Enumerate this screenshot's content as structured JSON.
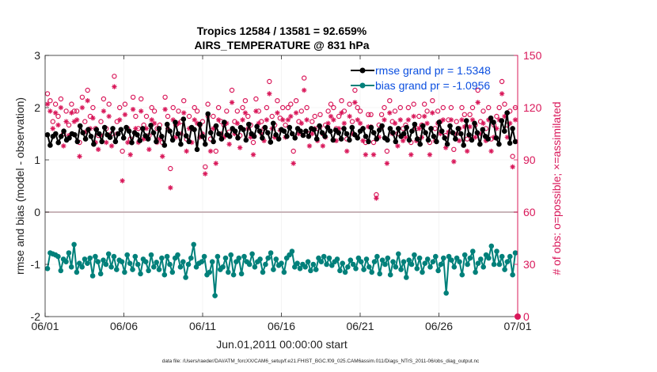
{
  "chart_data": {
    "type": "line",
    "title_line1": "Tropics 12584 / 13581 = 92.659%",
    "title_line2": "AIRS_TEMPERATURE @ 831 hPa",
    "xlabel": "Jun.01,2011 00:00:00 start",
    "ylabel_left": "rmse and bias (model - observation)",
    "ylabel_right": "# of obs: o=possible; ×=assimilated",
    "xlim": [
      0,
      30
    ],
    "ylim_left": [
      -2,
      3
    ],
    "ylim_right": [
      0,
      150
    ],
    "x_ticks": [
      0,
      5,
      10,
      15,
      20,
      25,
      30
    ],
    "x_tick_labels": [
      "06/01",
      "06/06",
      "06/11",
      "06/16",
      "06/21",
      "06/26",
      "07/01"
    ],
    "y_ticks_left": [
      -2,
      -1,
      0,
      1,
      2,
      3
    ],
    "y_ticks_right": [
      0,
      30,
      60,
      90,
      120,
      150
    ],
    "footer": "data file: /Users/raeder/DAI/ATM_forcXX/CAM6_setup/f.e21.FHIST_BGC.f09_025.CAM6assim.011/Diags_NTrS_2011-06/obs_diag_output.nc",
    "colors": {
      "rmse": "#000000",
      "bias": "#00807a",
      "obs": "#d9185a",
      "zero_line": "#c8b4b9",
      "label_blue": "#0b4fe0"
    },
    "series": [
      {
        "name": "rmse",
        "legend": "rmse grand pr = 1.5348",
        "values": [
          1.48,
          1.28,
          1.45,
          1.5,
          1.33,
          1.45,
          1.55,
          1.38,
          1.42,
          1.5,
          1.48,
          1.35,
          1.65,
          1.52,
          1.4,
          1.58,
          1.45,
          1.3,
          1.58,
          1.5,
          1.35,
          1.62,
          1.48,
          1.43,
          1.6,
          1.35,
          1.5,
          1.58,
          1.42,
          1.62,
          1.55,
          1.33,
          1.52,
          1.48,
          1.37,
          1.6,
          1.46,
          1.4,
          1.66,
          1.52,
          1.35,
          1.6,
          1.45,
          1.28,
          1.68,
          1.55,
          1.38,
          1.72,
          1.5,
          1.3,
          1.78,
          1.46,
          1.35,
          1.62,
          1.58,
          1.2,
          1.68,
          1.45,
          1.3,
          1.88,
          1.52,
          1.35,
          1.65,
          1.5,
          1.4,
          1.72,
          1.48,
          1.45,
          1.6,
          1.55,
          1.42,
          1.62,
          1.58,
          1.38,
          1.68,
          1.5,
          1.45,
          1.64,
          1.55,
          1.42,
          1.62,
          1.52,
          1.34,
          1.7,
          1.48,
          1.4,
          1.58,
          1.55,
          1.45,
          1.62,
          1.5,
          1.42,
          1.6,
          1.55,
          1.47,
          1.55,
          1.45,
          1.6,
          1.58,
          1.4,
          1.65,
          1.52,
          1.45,
          1.62,
          1.55,
          1.38,
          1.57,
          1.52,
          1.4,
          1.6,
          1.5,
          1.38,
          1.62,
          1.48,
          1.42,
          1.55,
          1.6,
          1.45,
          1.35,
          1.62,
          1.52,
          1.4,
          1.57,
          1.65,
          1.42,
          1.38,
          1.6,
          1.52,
          1.35,
          1.6,
          1.45,
          1.5,
          1.62,
          1.38,
          1.55,
          1.68,
          1.4,
          1.3,
          1.65,
          1.52,
          1.38,
          1.6,
          1.45,
          1.35,
          1.72,
          1.55,
          1.42,
          1.3,
          1.65,
          1.52,
          1.4,
          1.6,
          1.5,
          1.28,
          1.75,
          1.48,
          1.38,
          1.7,
          1.52,
          1.3,
          1.58,
          1.45,
          1.4,
          1.8,
          1.72,
          1.42,
          1.3,
          1.75,
          1.55,
          1.9,
          1.32,
          1.6,
          1.35
        ]
      },
      {
        "name": "bias",
        "legend": "bias grand pr = -1.0956",
        "values": [
          -1.08,
          -0.78,
          -0.8,
          -0.82,
          -0.85,
          -1.12,
          -0.9,
          -0.95,
          -0.78,
          -1.05,
          -0.62,
          -1.15,
          -0.98,
          -1.05,
          -0.9,
          -0.98,
          -0.88,
          -1.22,
          -0.85,
          -0.95,
          -1.18,
          -0.92,
          -1.0,
          -0.8,
          -1.05,
          -0.85,
          -1.1,
          -0.92,
          -0.95,
          -1.15,
          -0.82,
          -0.98,
          -1.1,
          -0.85,
          -1.0,
          -1.18,
          -0.9,
          -0.95,
          -1.12,
          -0.82,
          -1.05,
          -0.96,
          -1.1,
          -0.88,
          -1.2,
          -0.85,
          -1.0,
          -1.15,
          -0.88,
          -0.82,
          -1.05,
          -0.95,
          -1.25,
          -1.0,
          -0.88,
          -0.62,
          -1.05,
          -0.98,
          -0.95,
          -0.85,
          -1.2,
          -1.15,
          -0.95,
          -1.6,
          -0.85,
          -1.1,
          -1.05,
          -0.88,
          -1.15,
          -0.82,
          -1.2,
          -0.95,
          -0.88,
          -1.18,
          -0.85,
          -0.95,
          -1.0,
          -0.8,
          -1.05,
          -0.95,
          -0.9,
          -1.15,
          -1.0,
          -0.88,
          -0.78,
          -1.1,
          -0.9,
          -1.02,
          -0.98,
          -1.15,
          -0.88,
          -0.82,
          -0.75,
          -1.05,
          -0.98,
          -1.08,
          -1.0,
          -1.05,
          -0.95,
          -1.12,
          -1.0,
          -1.1,
          -0.88,
          -0.95,
          -0.85,
          -1.0,
          -0.88,
          -1.02,
          -0.95,
          -0.9,
          -1.12,
          -0.98,
          -1.15,
          -1.05,
          -0.92,
          -1.0,
          -1.08,
          -0.88,
          -0.95,
          -1.1,
          -0.9,
          -1.05,
          -1.15,
          -0.95,
          -0.85,
          -1.18,
          -0.92,
          -1.0,
          -0.88,
          -1.2,
          -0.95,
          -1.05,
          -0.8,
          -1.1,
          -0.95,
          -1.25,
          -0.92,
          -1.0,
          -0.82,
          -1.08,
          -0.88,
          -1.15,
          -0.98,
          -0.9,
          -1.05,
          -0.95,
          -0.85,
          -1.12,
          -1.0,
          -0.88,
          -1.55,
          -0.85,
          -0.92,
          -1.05,
          -0.88,
          -0.95,
          -1.2,
          -0.82,
          -1.0,
          -0.88,
          -0.75,
          -1.15,
          -0.98,
          -0.9,
          -1.05,
          -0.82,
          -0.88,
          -0.65,
          -1.0,
          -0.75,
          -1.0,
          -0.85,
          -1.1,
          -0.95,
          -0.85,
          -1.2,
          -0.78
        ]
      },
      {
        "name": "possible obs (o)",
        "values": [
          128,
          124,
          112,
          122,
          115,
          125,
          105,
          118,
          110,
          122,
          118,
          118,
          100,
          126,
          112,
          130,
          115,
          120,
          108,
          104,
          112,
          125,
          108,
          122,
          105,
          138,
          112,
          120,
          95,
          122,
          108,
          102,
          126,
          115,
          108,
          125,
          110,
          115,
          104,
          120,
          118,
          108,
          110,
          100,
          126,
          115,
          85,
          120,
          110,
          118,
          112,
          124,
          102,
          115,
          108,
          120,
          118,
          110,
          112,
          86,
          122,
          102,
          115,
          95,
          120,
          112,
          110,
          118,
          106,
          130,
          112,
          118,
          104,
          120,
          124,
          115,
          110,
          100,
          125,
          118,
          112,
          108,
          120,
          135,
          115,
          110,
          124,
          114,
          120,
          110,
          120,
          122,
          95,
          124,
          112,
          118,
          137,
          120,
          105,
          112,
          115,
          108,
          116,
          105,
          110,
          118,
          122,
          120,
          108,
          115,
          124,
          118,
          102,
          122,
          112,
          130,
          120,
          118,
          108,
          100,
          116,
          116,
          100,
          70,
          110,
          116,
          120,
          95,
          124,
          112,
          118,
          105,
          120,
          108,
          110,
          120,
          100,
          122,
          108,
          115,
          110,
          122,
          118,
          100,
          124,
          108,
          118,
          112,
          120,
          104,
          113,
          120,
          96,
          112,
          108,
          120,
          116,
          102,
          116,
          120,
          110,
          130,
          112,
          118,
          108,
          120,
          102,
          110,
          115,
          120,
          135,
          122,
          110,
          118,
          92,
          120
        ]
      },
      {
        "name": "assimilated obs (x)",
        "values": [
          122,
          118,
          108,
          117,
          110,
          120,
          98,
          112,
          104,
          117,
          112,
          113,
          92,
          120,
          106,
          124,
          108,
          114,
          100,
          96,
          104,
          118,
          100,
          115,
          98,
          132,
          105,
          113,
          78,
          116,
          100,
          93,
          119,
          108,
          100,
          118,
          102,
          108,
          96,
          113,
          111,
          100,
          102,
          92,
          119,
          108,
          74,
          113,
          103,
          111,
          105,
          117,
          95,
          108,
          100,
          113,
          111,
          103,
          105,
          82,
          115,
          95,
          108,
          88,
          113,
          105,
          103,
          111,
          99,
          123,
          105,
          111,
          97,
          113,
          117,
          108,
          103,
          93,
          118,
          111,
          105,
          101,
          113,
          128,
          108,
          103,
          117,
          107,
          113,
          103,
          113,
          115,
          88,
          117,
          105,
          111,
          130,
          113,
          98,
          105,
          108,
          101,
          109,
          98,
          103,
          111,
          115,
          113,
          101,
          108,
          117,
          111,
          95,
          115,
          105,
          123,
          113,
          111,
          101,
          93,
          109,
          109,
          93,
          68,
          103,
          109,
          113,
          88,
          117,
          105,
          111,
          98,
          113,
          101,
          103,
          113,
          93,
          115,
          101,
          108,
          103,
          115,
          111,
          93,
          117,
          101,
          111,
          105,
          113,
          97,
          106,
          113,
          89,
          105,
          101,
          113,
          109,
          95,
          109,
          113,
          103,
          123,
          105,
          111,
          101,
          113,
          95,
          103,
          108,
          113,
          128,
          115,
          103,
          111,
          86,
          113
        ]
      }
    ]
  }
}
